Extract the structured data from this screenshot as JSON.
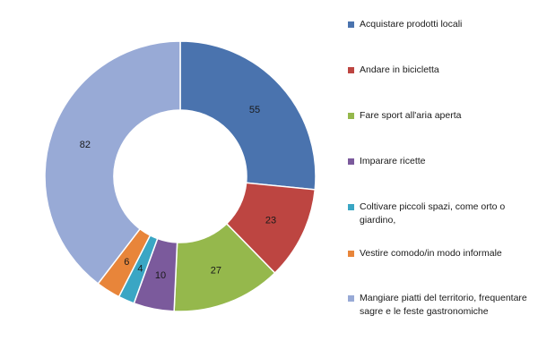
{
  "chart_data": {
    "type": "pie",
    "title": "",
    "categories": [
      "Acquistare prodotti locali",
      "Andare in bicicletta",
      "Fare sport all'aria aperta",
      "Imparare ricette",
      "Coltivare piccoli spazi, come orto o giardino,",
      "Vestire comodo/in modo informale",
      "Mangiare piatti del territorio, frequentare sagre e le feste gastronomiche"
    ],
    "values": [
      55,
      23,
      27,
      10,
      4,
      6,
      82
    ],
    "labels": [
      "55",
      "23",
      "27",
      "10",
      "4",
      "6",
      "82"
    ],
    "colors": [
      "#4a73ae",
      "#bd4541",
      "#95b84c",
      "#7b5a9c",
      "#3aa6c4",
      "#e8853a",
      "#98aad6"
    ],
    "donut": true,
    "legend_position": "right",
    "grid": false
  }
}
